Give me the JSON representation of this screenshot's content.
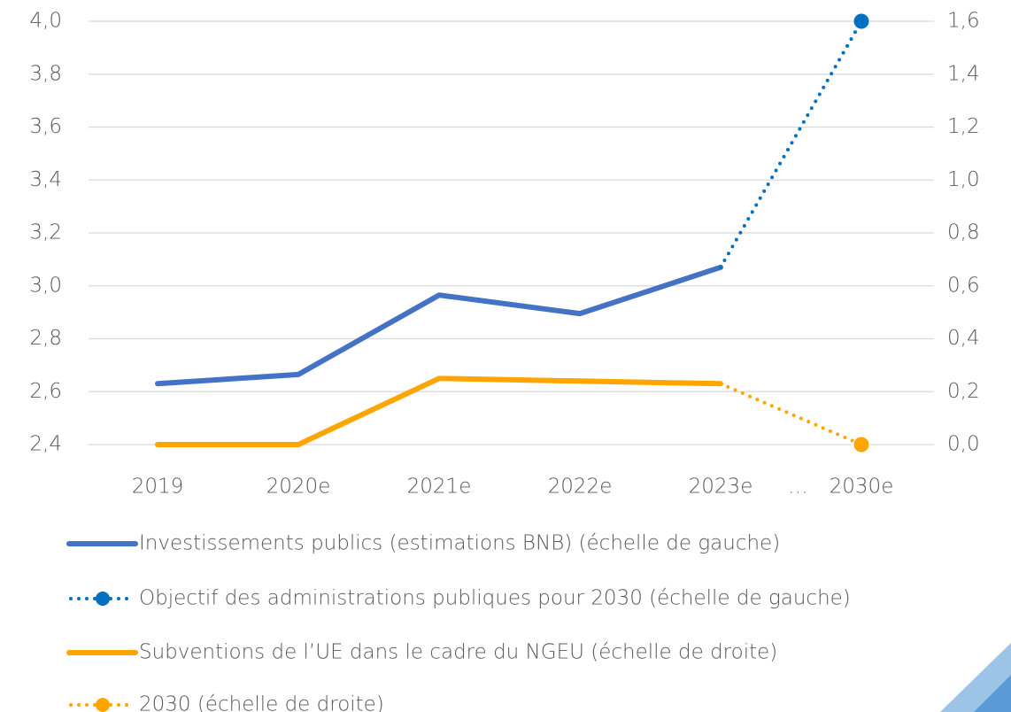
{
  "chart_data": {
    "type": "line",
    "categories": [
      "2019",
      "2020e",
      "2021e",
      "2022e",
      "2023e",
      "2030e"
    ],
    "annotations": [
      "…"
    ],
    "series": [
      {
        "name": "Investissements publics (estimations BNB) (échelle de gauche)",
        "color": "#4472c4",
        "values": [
          2.63,
          2.665,
          2.965,
          2.895,
          3.07,
          null
        ],
        "dashed": false,
        "end_marker": false
      },
      {
        "name": "Objectif des administrations publiques pour 2030 (échelle de gauche)",
        "color": "#0070c0",
        "values": [
          null,
          null,
          null,
          null,
          3.07,
          4.0
        ],
        "dashed": true,
        "end_marker": true
      },
      {
        "name": "Subventions de l’UE dans le cadre du NGEU (échelle de droite)",
        "color": "#ffa500",
        "values": [
          0,
          0,
          0.25,
          0.24,
          0.23,
          null
        ],
        "axis": "y2",
        "dashed": false,
        "end_marker": false
      },
      {
        "name": "2030 (échelle de droite)",
        "color": "#ffa500",
        "values": [
          null,
          null,
          null,
          null,
          0.23,
          0
        ],
        "axis": "y2",
        "dashed": true,
        "end_marker": true
      }
    ],
    "ylim": [
      2.4,
      4.0
    ],
    "yticks": [
      {
        "value": 2.4,
        "label": "2,4"
      },
      {
        "value": 2.6,
        "label": "2,6"
      },
      {
        "value": 2.8,
        "label": "2,8"
      },
      {
        "value": 3.0,
        "label": "3,0"
      },
      {
        "value": 3.2,
        "label": "3,2"
      },
      {
        "value": 3.4,
        "label": "3,4"
      },
      {
        "value": 3.6,
        "label": "3,6"
      },
      {
        "value": 3.8,
        "label": "3,8"
      },
      {
        "value": 4.0,
        "label": "4,0"
      }
    ],
    "y2lim": [
      0,
      1.6
    ],
    "y2ticks": [
      {
        "value": 0,
        "label": "0,0"
      },
      {
        "value": 0.2,
        "label": "0,2"
      },
      {
        "value": 0.4,
        "label": "0,4"
      },
      {
        "value": 0.6,
        "label": "0,6"
      },
      {
        "value": 0.8,
        "label": "0,8"
      },
      {
        "value": 1.0,
        "label": "1,0"
      },
      {
        "value": 1.2,
        "label": "1,2"
      },
      {
        "value": 1.4,
        "label": "1,4"
      },
      {
        "value": 1.6,
        "label": "1,6"
      }
    ],
    "grid": true
  }
}
